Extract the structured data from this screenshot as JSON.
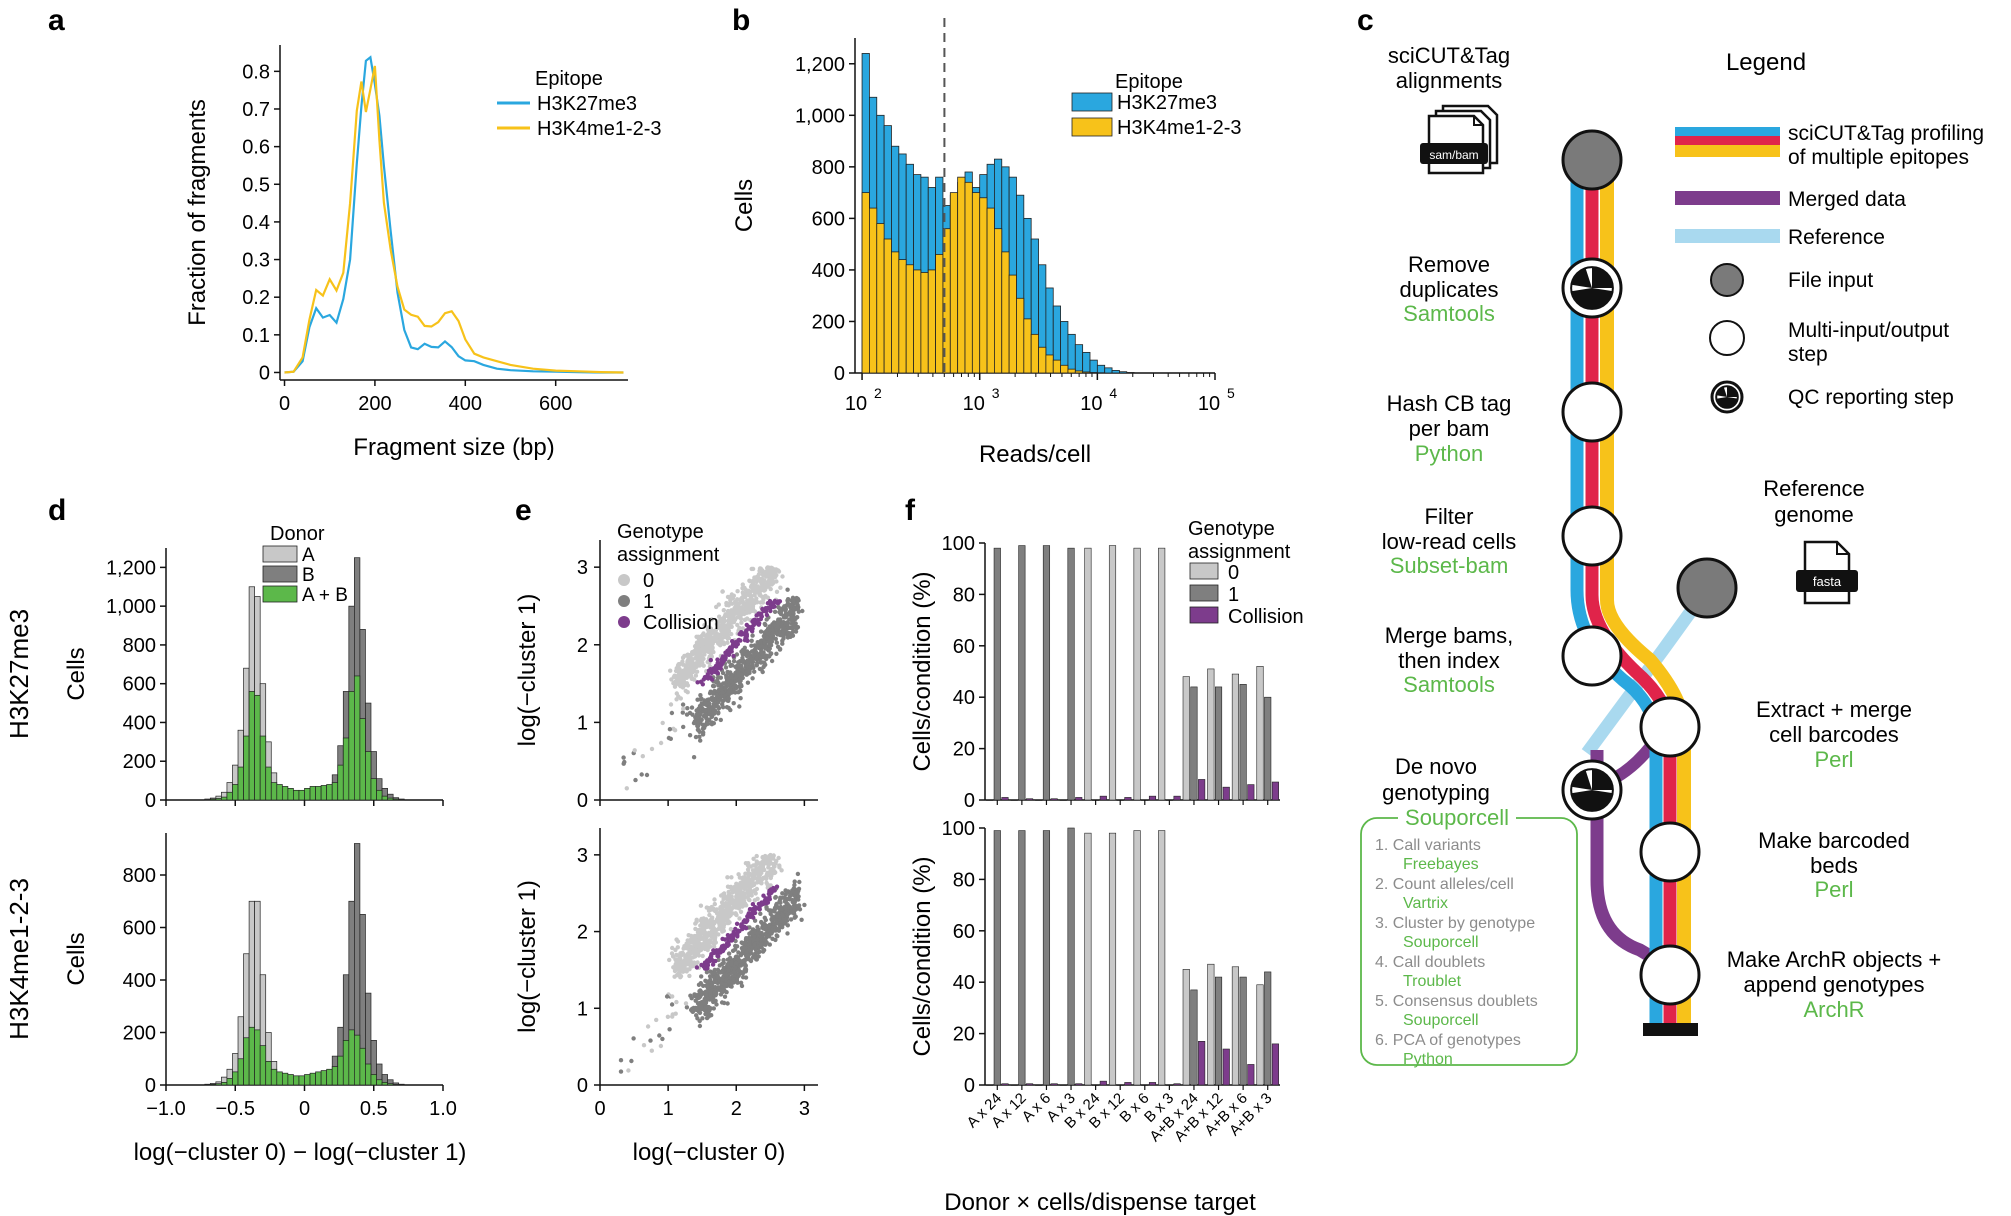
{
  "panels": {
    "a": "a",
    "b": "b",
    "c": "c",
    "d": "d",
    "e": "e",
    "f": "f"
  },
  "colors": {
    "blue": "#2aa7df",
    "yellow": "#f7c21a",
    "red": "#e0244a",
    "purple": "#7d3c8c",
    "lightblue": "#a9d9ef",
    "green": "#5cb84a",
    "ltgray": "#c8c8c8",
    "dkgray": "#7f7f7f",
    "fileGray": "#7a7a7a"
  },
  "chart_data": [
    {
      "id": "a",
      "type": "line",
      "title": "",
      "xlabel": "Fragment size (bp)",
      "ylabel": "Fraction of fragments",
      "xlim": [
        -10,
        760
      ],
      "ylim": [
        -0.02,
        0.87
      ],
      "xticks": [
        "0",
        "200",
        "400",
        "600"
      ],
      "xtick_values": [
        0,
        200,
        400,
        600
      ],
      "yticks": [
        "0",
        "0.1",
        "0.2",
        "0.3",
        "0.4",
        "0.5",
        "0.6",
        "0.7",
        "0.8"
      ],
      "ytick_values": [
        0,
        0.1,
        0.2,
        0.3,
        0.4,
        0.5,
        0.6,
        0.7,
        0.8
      ],
      "legend_title": "Epitope",
      "series": [
        {
          "name": "H3K27me3",
          "color": "#2aa7df",
          "x": [
            0,
            20,
            40,
            55,
            70,
            85,
            100,
            115,
            130,
            145,
            160,
            170,
            180,
            190,
            200,
            210,
            220,
            235,
            250,
            265,
            280,
            295,
            310,
            325,
            340,
            355,
            370,
            385,
            400,
            420,
            440,
            470,
            500,
            550,
            600,
            650,
            700,
            750
          ],
          "y": [
            0,
            0.002,
            0.03,
            0.12,
            0.17,
            0.15,
            0.16,
            0.14,
            0.2,
            0.3,
            0.55,
            0.7,
            0.82,
            0.83,
            0.76,
            0.68,
            0.55,
            0.38,
            0.22,
            0.12,
            0.07,
            0.06,
            0.07,
            0.06,
            0.06,
            0.08,
            0.07,
            0.05,
            0.04,
            0.03,
            0.02,
            0.01,
            0.006,
            0.003,
            0.002,
            0.001,
            0,
            0
          ]
        },
        {
          "name": "H3K4me1-2-3",
          "color": "#f7c21a",
          "x": [
            0,
            20,
            40,
            55,
            70,
            85,
            100,
            115,
            130,
            145,
            160,
            170,
            180,
            190,
            200,
            210,
            220,
            235,
            250,
            265,
            280,
            295,
            310,
            325,
            340,
            355,
            370,
            385,
            400,
            420,
            440,
            470,
            500,
            550,
            600,
            650,
            700,
            750
          ],
          "y": [
            0,
            0.002,
            0.04,
            0.14,
            0.22,
            0.2,
            0.24,
            0.21,
            0.26,
            0.45,
            0.7,
            0.78,
            0.7,
            0.76,
            0.82,
            0.62,
            0.45,
            0.32,
            0.22,
            0.16,
            0.15,
            0.15,
            0.13,
            0.13,
            0.14,
            0.16,
            0.16,
            0.13,
            0.08,
            0.05,
            0.04,
            0.03,
            0.02,
            0.01,
            0.005,
            0.003,
            0.001,
            0
          ]
        }
      ]
    },
    {
      "id": "b",
      "type": "bar",
      "title": "",
      "xlabel": "Reads/cell",
      "ylabel": "Cells",
      "xscale": "log10",
      "xlim_log10": [
        1.94,
        5.0
      ],
      "ylim": [
        0,
        1300
      ],
      "xticks": [
        "10",
        "10",
        "10",
        "10"
      ],
      "xtick_exponents": [
        "2",
        "3",
        "4",
        "5"
      ],
      "yticks": [
        "0",
        "200",
        "400",
        "600",
        "800",
        "1,000",
        "1,200"
      ],
      "ytick_values": [
        0,
        200,
        400,
        600,
        800,
        1000,
        1200
      ],
      "threshold_log10": 2.7,
      "bin_start_log10": 2.0,
      "bin_width_log10": 0.0625,
      "legend_title": "Epitope",
      "series": [
        {
          "name": "H3K27me3",
          "color": "#2aa7df",
          "values": [
            1240,
            1070,
            1000,
            960,
            880,
            850,
            810,
            770,
            760,
            720,
            760,
            650,
            690,
            740,
            780,
            720,
            770,
            810,
            830,
            800,
            760,
            690,
            600,
            520,
            420,
            330,
            260,
            200,
            150,
            110,
            80,
            50,
            30,
            20,
            10,
            5,
            2,
            0
          ]
        },
        {
          "name": "H3K4me1-2-3",
          "color": "#f7c21a",
          "values": [
            700,
            640,
            580,
            520,
            470,
            440,
            420,
            400,
            390,
            400,
            460,
            560,
            700,
            760,
            740,
            700,
            680,
            640,
            560,
            470,
            380,
            290,
            210,
            150,
            100,
            70,
            50,
            30,
            15,
            8,
            4,
            2,
            1,
            0,
            0,
            0,
            0,
            0
          ]
        }
      ]
    },
    {
      "id": "d",
      "type": "bar",
      "facets": [
        "H3K27me3",
        "H3K4me1-2-3"
      ],
      "xlabel": "log(−cluster 0) − log(−cluster 1)",
      "ylabel": "Cells",
      "xlim": [
        -1.0,
        1.0
      ],
      "xticks": [
        "−1.0",
        "−0.5",
        "0",
        "0.5",
        "1.0"
      ],
      "xtick_values": [
        -1.0,
        -0.5,
        0,
        0.5,
        1.0
      ],
      "bin_start": -0.72,
      "bin_width": 0.04,
      "legend_title": "Donor",
      "legend": [
        "A",
        "B",
        "A + B"
      ],
      "top": {
        "ylim": [
          0,
          1300
        ],
        "yticks": [
          "0",
          "200",
          "400",
          "600",
          "800",
          "1,000",
          "1,200"
        ],
        "ytick_values": [
          0,
          200,
          400,
          600,
          800,
          1000,
          1200
        ],
        "A": [
          5,
          10,
          20,
          40,
          90,
          180,
          360,
          680,
          1100,
          1050,
          600,
          300,
          140,
          60,
          30,
          15,
          8,
          5,
          3,
          2,
          1,
          0,
          0,
          0,
          0,
          0,
          0,
          0,
          0,
          0,
          0,
          0,
          0,
          0,
          0,
          0
        ],
        "B": [
          0,
          0,
          0,
          0,
          0,
          0,
          0,
          0,
          0,
          0,
          0,
          0,
          0,
          0,
          0,
          0,
          0,
          1,
          3,
          6,
          12,
          30,
          60,
          130,
          280,
          560,
          1000,
          1250,
          880,
          500,
          250,
          110,
          60,
          30,
          12,
          5
        ],
        "AB": [
          2,
          5,
          8,
          15,
          40,
          80,
          170,
          330,
          560,
          540,
          330,
          170,
          90,
          80,
          70,
          60,
          50,
          50,
          60,
          70,
          70,
          75,
          80,
          90,
          180,
          320,
          560,
          640,
          420,
          250,
          110,
          50,
          20,
          10,
          5,
          2
        ]
      },
      "bottom": {
        "ylim": [
          0,
          960
        ],
        "yticks": [
          "0",
          "200",
          "400",
          "600",
          "800"
        ],
        "ytick_values": [
          0,
          200,
          400,
          600,
          800
        ],
        "A": [
          3,
          6,
          12,
          30,
          60,
          120,
          260,
          500,
          700,
          700,
          420,
          200,
          90,
          40,
          20,
          10,
          5,
          3,
          2,
          1,
          0,
          0,
          0,
          0,
          0,
          0,
          0,
          0,
          0,
          0,
          0,
          0,
          0,
          0,
          0,
          0
        ],
        "B": [
          0,
          0,
          0,
          0,
          0,
          0,
          0,
          0,
          0,
          0,
          0,
          0,
          0,
          0,
          0,
          0,
          0,
          1,
          2,
          5,
          10,
          25,
          50,
          110,
          220,
          420,
          700,
          920,
          650,
          350,
          170,
          80,
          40,
          20,
          8,
          3
        ],
        "AB": [
          1,
          3,
          5,
          10,
          25,
          50,
          100,
          180,
          220,
          210,
          150,
          90,
          60,
          50,
          45,
          40,
          35,
          35,
          40,
          45,
          50,
          55,
          60,
          70,
          110,
          170,
          210,
          190,
          140,
          80,
          40,
          20,
          10,
          5,
          2,
          1
        ]
      }
    },
    {
      "id": "e",
      "type": "scatter",
      "xlabel": "log(−cluster 0)",
      "ylabel": "log(−cluster 1)",
      "xlim": [
        0,
        3.2
      ],
      "ylim": [
        0,
        3.35
      ],
      "xticks": [
        "0",
        "1",
        "2",
        "3"
      ],
      "yticks": [
        "0",
        "1",
        "2",
        "3"
      ],
      "legend_title": "Genotype\nassignment",
      "legend": [
        "0",
        "1",
        "Collision"
      ],
      "series_description": "Cluster 0 lies above the diagonal (light gray), cluster 1 below (dark gray), collisions (purple) along the boundary"
    },
    {
      "id": "f",
      "type": "bar",
      "xlabel": "Donor × cells/dispense target",
      "ylabel": "Cells/condition (%)",
      "ylim": [
        0,
        100
      ],
      "yticks": [
        "0",
        "20",
        "40",
        "60",
        "80",
        "100"
      ],
      "ytick_values": [
        0,
        20,
        40,
        60,
        80,
        100
      ],
      "categories": [
        "A x 24",
        "A x 12",
        "A x 6",
        "A x 3",
        "B x 24",
        "B x 12",
        "B x 6",
        "B x 3",
        "A+B x 24",
        "A+B x 12",
        "A+B x 6",
        "A+B x 3"
      ],
      "legend_title": "Genotype\nassignment",
      "legend": [
        "0",
        "1",
        "Collision"
      ],
      "top": {
        "series": [
          {
            "name": "0",
            "values": [
              0,
              0,
              0,
              0,
              98,
              99,
              98,
              98,
              48,
              51,
              49,
              52
            ]
          },
          {
            "name": "1",
            "values": [
              98,
              99,
              99,
              98,
              0,
              0,
              0,
              0,
              44,
              44,
              45,
              40
            ]
          },
          {
            "name": "Collision",
            "values": [
              1,
              0.5,
              0.5,
              1,
              1.5,
              1,
              1.5,
              1.5,
              8,
              5,
              6,
              7
            ]
          }
        ]
      },
      "bottom": {
        "series": [
          {
            "name": "0",
            "values": [
              0,
              0,
              0,
              0,
              98,
              98,
              99,
              99,
              45,
              47,
              46,
              39
            ]
          },
          {
            "name": "1",
            "values": [
              99,
              99,
              99,
              100,
              0,
              0,
              0,
              0,
              37,
              42,
              42,
              44
            ]
          },
          {
            "name": "Collision",
            "values": [
              0.5,
              0.5,
              0.5,
              0.5,
              1.5,
              1,
              1,
              0.5,
              17,
              14,
              8,
              16
            ]
          }
        ]
      }
    }
  ],
  "pipeline": {
    "legend_title": "Legend",
    "legend_items": [
      "sciCUT&Tag profiling",
      "of multiple epitopes",
      "Merged data",
      "Reference",
      "File input",
      "Multi-input/output",
      "step",
      "QC reporting step"
    ],
    "input_title": [
      "sciCUT&Tag",
      "alignments"
    ],
    "input_icon_label": "sam/bam",
    "reference_title": [
      "Reference",
      "genome"
    ],
    "reference_icon_label": "fasta",
    "steps": [
      {
        "lines": [
          "Remove",
          "duplicates"
        ],
        "tool": "Samtools"
      },
      {
        "lines": [
          "Hash CB tag",
          "per bam"
        ],
        "tool": "Python"
      },
      {
        "lines": [
          "Filter",
          "low-read cells"
        ],
        "tool": "Subset-bam"
      },
      {
        "lines": [
          "Merge bams,",
          "then index"
        ],
        "tool": "Samtools"
      },
      {
        "lines": [
          "De novo",
          "genotyping"
        ],
        "tool": "Souporcell"
      },
      {
        "lines": [
          "Extract + merge",
          "cell barcodes"
        ],
        "tool": "Perl"
      },
      {
        "lines": [
          "Make barcoded",
          "beds"
        ],
        "tool": "Perl"
      },
      {
        "lines": [
          "Make ArchR objects +",
          "append genotypes"
        ],
        "tool": "ArchR"
      }
    ],
    "substeps": [
      {
        "label": "1.  Call variants",
        "tool": "Freebayes"
      },
      {
        "label": "2.  Count alleles/cell",
        "tool": "Vartrix"
      },
      {
        "label": "3.  Cluster by genotype",
        "tool": "Souporcell"
      },
      {
        "label": "4.  Call doublets",
        "tool": "Troublet"
      },
      {
        "label": "5.  Consensus doublets",
        "tool": "Souporcell"
      },
      {
        "label": "6.  PCA of genotypes",
        "tool": "Python"
      }
    ]
  }
}
